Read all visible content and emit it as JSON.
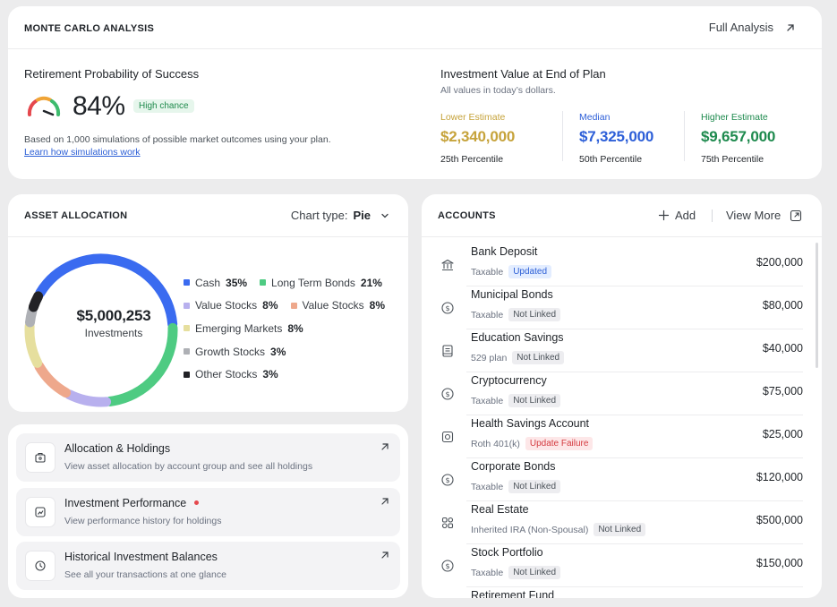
{
  "colors": {
    "lower": "#c6a33b",
    "median": "#2d5fd8",
    "higher": "#1e8a4e",
    "cash": "#3a6bf0",
    "long_term_bonds": "#4ecb82",
    "value_stocks_a": "#b8b0ee",
    "value_stocks_b": "#eea88c",
    "emerging": "#e6df9e",
    "growth": "#aeb0b5",
    "other": "#222226"
  },
  "monte_carlo": {
    "title": "MONTE CARLO ANALYSIS",
    "full_analysis": "Full Analysis",
    "probability_title": "Retirement Probability of Success",
    "probability_value": "84%",
    "chance_badge": "High chance",
    "note": "Based on 1,000 simulations of possible market outcomes using your plan.",
    "learn_link": "Learn how simulations work",
    "investment_title": "Investment Value at End of Plan",
    "investment_sub": "All values in today’s dollars.",
    "estimates": [
      {
        "label": "Lower Estimate",
        "value": "$2,340,000",
        "percentile": "25th Percentile"
      },
      {
        "label": "Median",
        "value": "$7,325,000",
        "percentile": "50th Percentile"
      },
      {
        "label": "Higher Estimate",
        "value": "$9,657,000",
        "percentile": "75th Percentile"
      }
    ]
  },
  "asset_allocation": {
    "title": "ASSET ALLOCATION",
    "chart_type_label": "Chart type:",
    "chart_type_value": "Pie",
    "total": "$5,000,253",
    "total_label": "Investments",
    "items": [
      {
        "name": "Cash",
        "pct": "35%",
        "value": 35
      },
      {
        "name": "Long Term Bonds",
        "pct": "21%",
        "value": 21
      },
      {
        "name": "Value Stocks",
        "pct": "8%",
        "value": 8
      },
      {
        "name": "Value Stocks",
        "pct": "8%",
        "value": 8
      },
      {
        "name": "Emerging Markets",
        "pct": "8%",
        "value": 8
      },
      {
        "name": "Growth Stocks",
        "pct": "3%",
        "value": 3
      },
      {
        "name": "Other Stocks",
        "pct": "3%",
        "value": 3
      }
    ]
  },
  "links": [
    {
      "title": "Allocation & Holdings",
      "sub": "View asset allocation by account group and see all holdings",
      "icon": "briefcase-icon"
    },
    {
      "title": "Investment Performance",
      "sub": "View performance history for holdings",
      "icon": "chart-icon"
    },
    {
      "title": "Historical Investment Balances",
      "sub": "See all your transactions at one glance",
      "icon": "clock-icon"
    }
  ],
  "accounts": {
    "title": "ACCOUNTS",
    "add_label": "Add",
    "view_more": "View More",
    "rows": [
      {
        "name": "Bank Deposit",
        "type": "Taxable",
        "badge": "Updated",
        "amount": "$200,000",
        "icon": "bank-icon"
      },
      {
        "name": "Municipal Bonds",
        "type": "Taxable",
        "badge": "Not Linked",
        "amount": "$80,000",
        "icon": "dollar-circle-icon"
      },
      {
        "name": "Education Savings",
        "type": "529 plan",
        "badge": "Not Linked",
        "amount": "$40,000",
        "icon": "book-icon"
      },
      {
        "name": "Cryptocurrency",
        "type": "Taxable",
        "badge": "Not Linked",
        "amount": "$75,000",
        "icon": "dollar-circle-icon"
      },
      {
        "name": "Health Savings Account",
        "type": "Roth 401(k)",
        "badge": "Update Failure",
        "amount": "$25,000",
        "icon": "safe-icon"
      },
      {
        "name": "Corporate Bonds",
        "type": "Taxable",
        "badge": "Not Linked",
        "amount": "$120,000",
        "icon": "dollar-circle-icon"
      },
      {
        "name": "Real Estate",
        "type": "Inherited IRA (Non-Spousal)",
        "badge": "Not Linked",
        "amount": "$500,000",
        "icon": "grid-icon"
      },
      {
        "name": "Stock Portfolio",
        "type": "Taxable",
        "badge": "Not Linked",
        "amount": "$150,000",
        "icon": "dollar-circle-icon"
      },
      {
        "name": "Retirement Fund",
        "type": "",
        "badge": "",
        "amount": "",
        "icon": ""
      }
    ]
  }
}
